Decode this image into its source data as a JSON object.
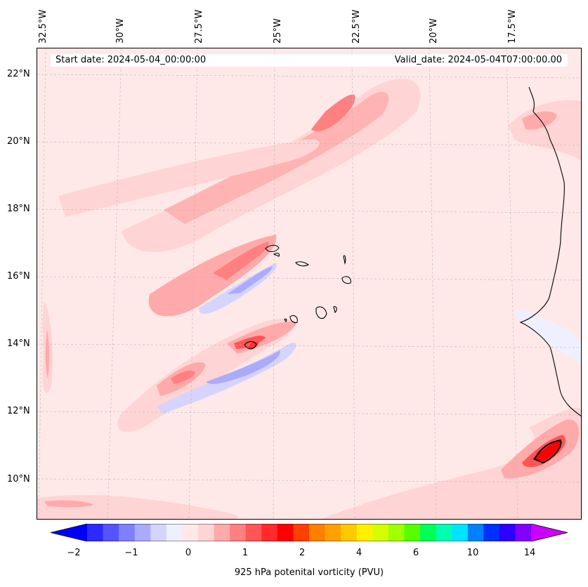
{
  "header": {
    "start_label": "Start date: 2024-05-04_00:00:00",
    "valid_label": "Valid_date: 2024-05-04T07:00:00.00"
  },
  "longitude_labels": [
    "32.5°W",
    "30°W",
    "27.5°W",
    "25°W",
    "22.5°W",
    "20°W",
    "17.5°W"
  ],
  "latitude_labels": [
    "22°N",
    "20°N",
    "18°N",
    "16°N",
    "14°N",
    "12°N",
    "10°N"
  ],
  "colorbar": {
    "label": "925 hPa potenital vorticity (PVU)",
    "tick_labels": [
      "−2",
      "−1",
      "0",
      "1",
      "2",
      "4",
      "6",
      "10",
      "14"
    ],
    "colors": [
      "#0000ff",
      "#2b2bff",
      "#5555ff",
      "#7f7fff",
      "#aaaaff",
      "#d4d4ff",
      "#eef0ff",
      "#ffe8e8",
      "#ffd4d4",
      "#ffaaaa",
      "#ff8080",
      "#ff5555",
      "#ff2b2b",
      "#ff0000",
      "#ff4000",
      "#ff7f00",
      "#ffa000",
      "#ffc800",
      "#fff000",
      "#d4ff00",
      "#a0ff00",
      "#55ff00",
      "#00ff55",
      "#00ffb0",
      "#00e5ff",
      "#0080ff",
      "#0030ff",
      "#2b00ff",
      "#8000ff",
      "#cc00ff"
    ]
  },
  "map": {
    "region": "Eastern North Atlantic, Cape Verde Islands and West African coast",
    "background_color": "#ffe8e8"
  }
}
